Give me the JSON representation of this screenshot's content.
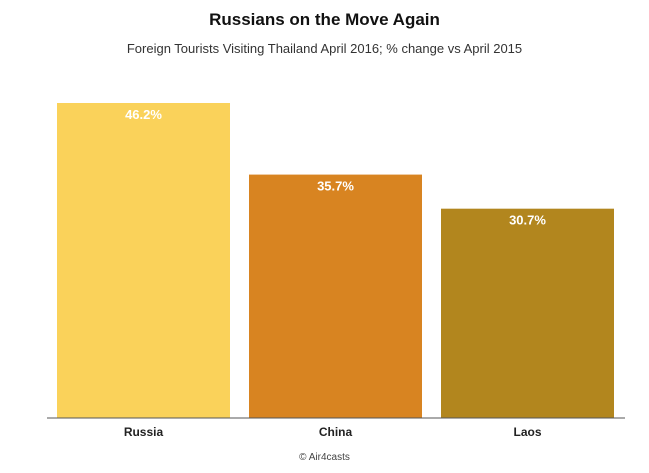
{
  "header": {
    "title": "Russians on the Move Again",
    "subtitle": "Foreign Tourists Visiting Thailand April 2016; % change vs April 2015"
  },
  "footer": {
    "source": "© Air4casts"
  },
  "chart_data": {
    "type": "bar",
    "title": "Russians on the Move Again",
    "subtitle": "Foreign Tourists Visiting Thailand April 2016; % change vs April 2015",
    "categories": [
      "Russia",
      "China",
      "Laos"
    ],
    "values": [
      46.2,
      35.7,
      30.7
    ],
    "value_labels": [
      "46.2%",
      "35.7%",
      "30.7%"
    ],
    "colors": [
      "#fad25a",
      "#d88421",
      "#b2861e"
    ],
    "ylim": [
      0,
      46.2
    ],
    "grid": false,
    "xlabel": "",
    "ylabel": ""
  }
}
